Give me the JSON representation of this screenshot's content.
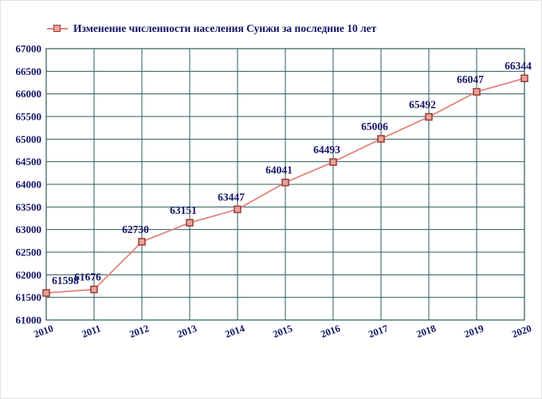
{
  "chart_data": {
    "type": "line",
    "title": "Изменение численности населения Сунжи за последние 10 лет",
    "categories": [
      "2010",
      "2011",
      "2012",
      "2013",
      "2014",
      "2015",
      "2016",
      "2017",
      "2018",
      "2019",
      "2020"
    ],
    "values": [
      61598,
      61676,
      62730,
      63151,
      63447,
      64041,
      64493,
      65006,
      65492,
      66047,
      66344
    ],
    "ylim": [
      61000,
      67000
    ],
    "ytick_step": 500,
    "grid": true,
    "legend_position": "top-left",
    "marker": "square",
    "colors": {
      "line": "#e0837c",
      "marker_fill": "#e8a29c",
      "marker_stroke": "#993b35",
      "grid": "#2d5a5a",
      "text": "#141466",
      "background": "#ffffff"
    }
  }
}
